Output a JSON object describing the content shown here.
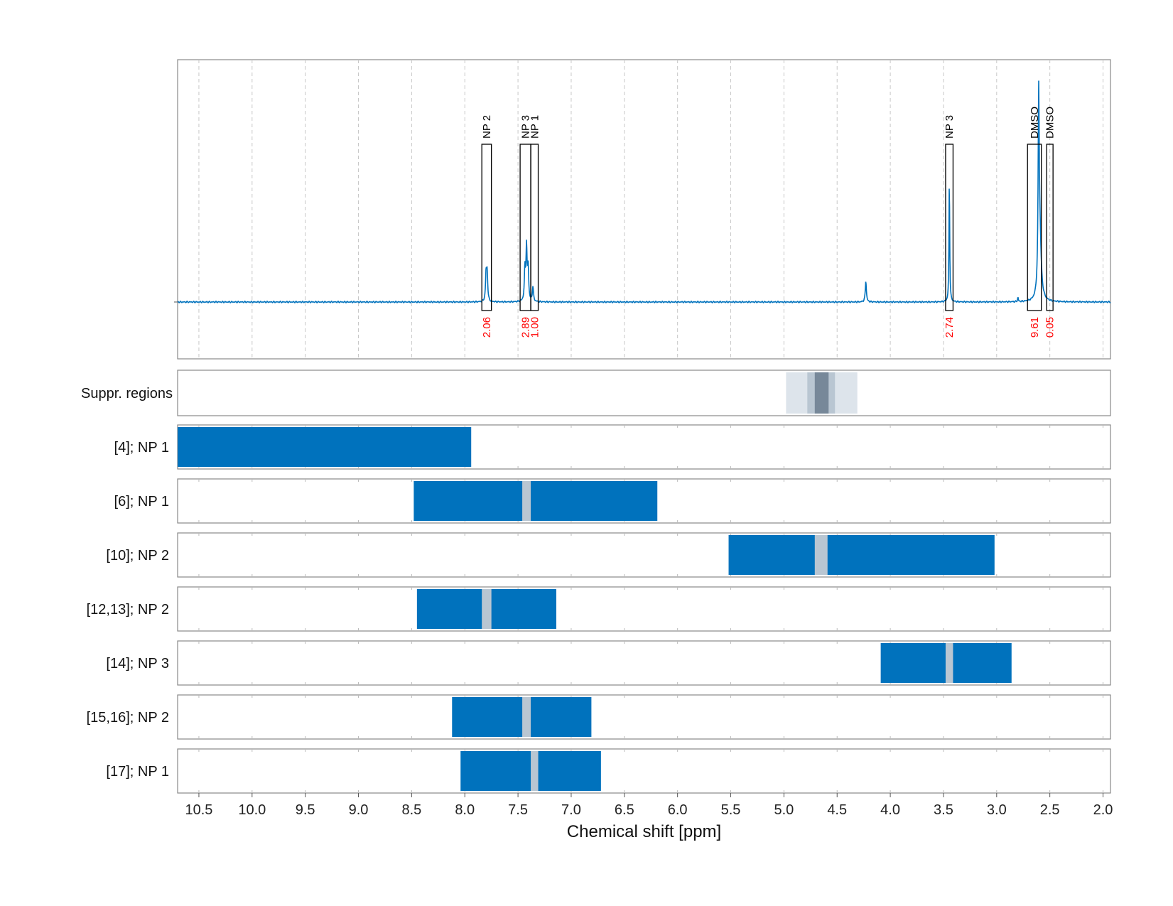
{
  "chart_data": {
    "type": "line",
    "xlabel": "Chemical shift [ppm]",
    "xlim": [
      10.7,
      1.93
    ],
    "x_reversed": true,
    "xticks": [
      "10.5",
      "10.0",
      "9.5",
      "9.0",
      "8.5",
      "8.0",
      "7.5",
      "7.0",
      "6.5",
      "6.0",
      "5.5",
      "5.0",
      "4.5",
      "4.0",
      "3.5",
      "3.0",
      "2.5",
      "2.0"
    ],
    "grid": "vertical dashed",
    "spectrum": {
      "color": "#0072bd",
      "baseline": 0,
      "peaks": [
        {
          "ppm": 7.8,
          "height": 0.13,
          "width": 0.006
        },
        {
          "ppm": 7.79,
          "height": 0.13,
          "width": 0.006
        },
        {
          "ppm": 7.435,
          "height": 0.15,
          "width": 0.006
        },
        {
          "ppm": 7.42,
          "height": 0.25,
          "width": 0.006
        },
        {
          "ppm": 7.405,
          "height": 0.16,
          "width": 0.006
        },
        {
          "ppm": 7.36,
          "height": 0.07,
          "width": 0.006
        },
        {
          "ppm": 4.23,
          "height": 0.1,
          "width": 0.006
        },
        {
          "ppm": 3.445,
          "height": 0.58,
          "width": 0.004
        },
        {
          "ppm": 2.8,
          "height": 0.02,
          "width": 0.004
        },
        {
          "ppm": 2.605,
          "height": 0.83,
          "width": 0.006
        },
        {
          "ppm": 2.595,
          "height": 0.3,
          "width": 0.015
        }
      ]
    },
    "peak_regions": [
      {
        "label": "NP 2",
        "from": 7.84,
        "to": 7.75,
        "integral": "2.06"
      },
      {
        "label": "NP 3",
        "from": 7.48,
        "to": 7.38,
        "integral": "2.89"
      },
      {
        "label": "NP 1",
        "from": 7.38,
        "to": 7.31,
        "integral": "1.00"
      },
      {
        "label": "NP 3",
        "from": 3.48,
        "to": 3.41,
        "integral": "2.74"
      },
      {
        "label": "DMSO",
        "from": 2.71,
        "to": 2.58,
        "integral": "9.61"
      },
      {
        "label": "DMSO",
        "from": 2.53,
        "to": 2.47,
        "integral": "0.05"
      }
    ],
    "integral_color": "#ff0000",
    "suppressed_regions": {
      "label": "Suppr. regions",
      "bands": [
        {
          "from": 4.98,
          "to": 4.31,
          "color": "#dde4eb"
        },
        {
          "from": 4.78,
          "to": 4.52,
          "color": "#b9c6d2"
        },
        {
          "from": 4.71,
          "to": 4.58,
          "color": "#778899"
        }
      ]
    },
    "correlation_rows": [
      {
        "label": "[4]; NP 1",
        "from": 10.7,
        "to": 7.94,
        "gaps": []
      },
      {
        "label": "[6]; NP 1",
        "from": 8.48,
        "to": 6.19,
        "gaps": [
          {
            "from": 7.46,
            "to": 7.38
          }
        ]
      },
      {
        "label": "[10]; NP 2",
        "from": 5.52,
        "to": 3.02,
        "gaps": [
          {
            "from": 4.71,
            "to": 4.59
          }
        ]
      },
      {
        "label": "[12,13]; NP 2",
        "from": 8.45,
        "to": 7.14,
        "gaps": [
          {
            "from": 7.84,
            "to": 7.75
          }
        ]
      },
      {
        "label": "[14]; NP 3",
        "from": 4.09,
        "to": 2.86,
        "gaps": [
          {
            "from": 3.48,
            "to": 3.41
          }
        ]
      },
      {
        "label": "[15,16]; NP 2",
        "from": 8.12,
        "to": 6.81,
        "gaps": [
          {
            "from": 7.46,
            "to": 7.38
          }
        ]
      },
      {
        "label": "[17]; NP 1",
        "from": 8.04,
        "to": 6.72,
        "gaps": [
          {
            "from": 7.38,
            "to": 7.31
          }
        ]
      }
    ],
    "bar_color": "#0072bd",
    "gap_color": "#b9c6d2"
  }
}
